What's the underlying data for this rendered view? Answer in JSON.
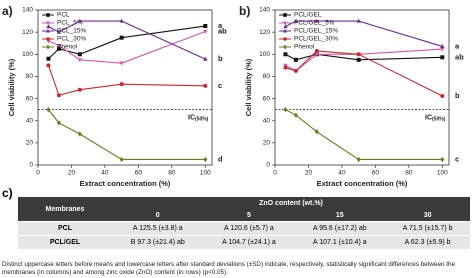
{
  "chart_data": [
    {
      "type": "line",
      "panel_label": "a)",
      "ylabel": "Cell viability (%)",
      "xlabel": "Extract concentration (%)",
      "xlim": [
        0,
        104
      ],
      "xticks": [
        0,
        20,
        40,
        60,
        80,
        100
      ],
      "ylim": [
        0,
        140
      ],
      "yticks": [
        0,
        20,
        40,
        60,
        80,
        100,
        120,
        140
      ],
      "legend": "upper left",
      "hline": 50,
      "hline_label": "IC",
      "hline_sub": "(50%)",
      "x": [
        6.25,
        12.5,
        25,
        50,
        100
      ],
      "series": [
        {
          "name": "PCL",
          "color": "#111111",
          "marker": "square",
          "values": [
            96,
            105,
            100,
            115,
            125.5
          ],
          "end_label": "a"
        },
        {
          "name": "PCL_5%",
          "color": "#d05aa8",
          "marker": "tri-down",
          "values": [
            112,
            108,
            95,
            92,
            120.6
          ],
          "end_label": "ab"
        },
        {
          "name": "PCL_15%",
          "color": "#6a2e8e",
          "marker": "tri-up",
          "values": [
            125,
            120,
            130,
            130,
            95.6
          ],
          "end_label": "b"
        },
        {
          "name": "PCL_30%",
          "color": "#c8282e",
          "marker": "circle",
          "values": [
            90,
            63,
            68,
            73,
            71.5
          ],
          "end_label": "c"
        },
        {
          "name": "Phenol",
          "color": "#6b7a1e",
          "marker": "diamond",
          "values": [
            50,
            38,
            28,
            5,
            5
          ],
          "end_label": "d"
        }
      ]
    },
    {
      "type": "line",
      "panel_label": "b)",
      "ylabel": "Cell viability (%)",
      "xlabel": "Extract concentration (%)",
      "xlim": [
        0,
        104
      ],
      "xticks": [
        0,
        20,
        40,
        60,
        80,
        100
      ],
      "ylim": [
        0,
        140
      ],
      "yticks": [
        0,
        20,
        40,
        60,
        80,
        100,
        120,
        140
      ],
      "legend": "upper left",
      "hline": 50,
      "hline_label": "IC",
      "hline_sub": "(50%)",
      "x": [
        6.25,
        12.5,
        25,
        50,
        100
      ],
      "series": [
        {
          "name": "PCL/GEL",
          "color": "#111111",
          "marker": "square",
          "values": [
            100,
            95,
            100,
            95,
            97.3
          ],
          "end_label": "ab"
        },
        {
          "name": "PCL/GEL_5%",
          "color": "#d05aa8",
          "marker": "tri-down",
          "values": [
            90,
            85,
            100,
            100,
            104.7
          ]
        },
        {
          "name": "PCL/GEL_15%",
          "color": "#6a2e8e",
          "marker": "tri-up",
          "values": [
            125,
            130,
            130,
            130,
            107.1
          ],
          "end_label": "a"
        },
        {
          "name": "PCL/GEL_30%",
          "color": "#c8282e",
          "marker": "circle",
          "values": [
            88,
            85,
            103,
            100,
            62.3
          ],
          "end_label": "b"
        },
        {
          "name": "Phenol",
          "color": "#6b7a1e",
          "marker": "diamond",
          "values": [
            50,
            45,
            30,
            5,
            5
          ],
          "end_label": "c"
        }
      ]
    }
  ],
  "table": {
    "panel_label": "c)",
    "header": "Membranes",
    "group_header": "ZnO content (wt.%)",
    "columns": [
      "0",
      "5",
      "15",
      "30"
    ],
    "rows": [
      [
        "PCL",
        "A 125.5 (±3.8) a",
        "A 120.6 (±5.7) a",
        "A 95.6 (±17.2) ab",
        "A 71.5 (±15.7) b"
      ],
      [
        "PCL/GEL",
        "B 97.3 (±21.4) ab",
        "A 104.7 (±24.1) a",
        "A 107.1 (±10.4) a",
        "A 62.3 (±5.9) b"
      ]
    ]
  },
  "caption": "Distinct uppercase letters before means and lowercase letters after standard deviations (±SD) indicate, respectively, statistically significant differences between the membranes (in columns) and among zinc oxide (ZnO) content (in rows) (p<0.05)."
}
